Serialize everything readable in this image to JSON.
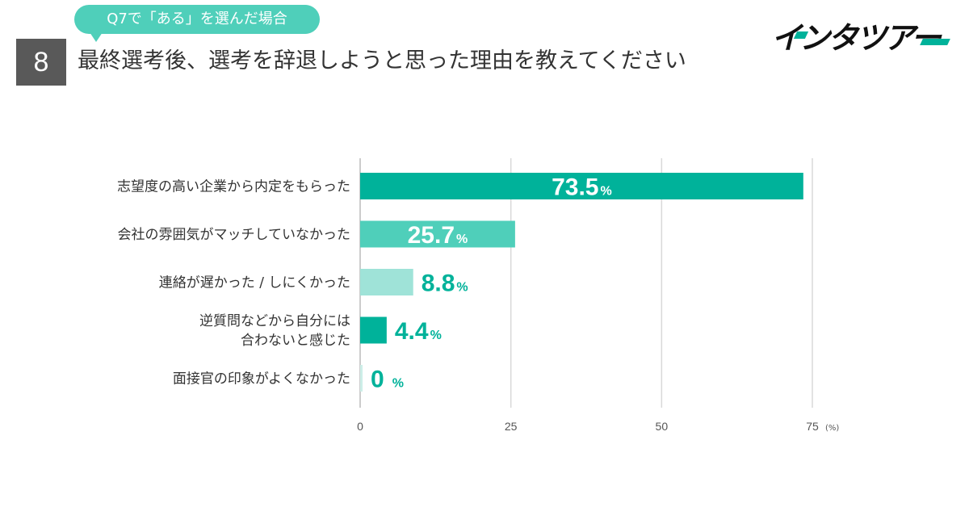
{
  "header": {
    "condition_label": "Q7で「ある」を選んだ場合",
    "question_number": "8",
    "title": "最終選考後、選考を辞退しようと思った理由を教えてください",
    "brand": "インタツアー"
  },
  "colors": {
    "accent": "#00b29a",
    "bubble": "#4fcfba",
    "number_box": "#595959"
  },
  "chart_data": {
    "type": "bar",
    "orientation": "horizontal",
    "categories": [
      "志望度の高い企業から内定をもらった",
      "会社の雰囲気がマッチしていなかった",
      "連絡が遅かった / しにくかった",
      "逆質問などから自分には\n合わないと感じた",
      "面接官の印象がよくなかった"
    ],
    "values": [
      73.5,
      25.7,
      8.8,
      4.4,
      0
    ],
    "value_labels": [
      "73.5",
      "25.7",
      "8.8",
      "4.4",
      "0"
    ],
    "value_unit": "%",
    "bar_colors": [
      "#00b29a",
      "#4fcfba",
      "#9fe3d8",
      "#00b29a",
      "#cdeee8"
    ],
    "xlim": [
      0,
      75
    ],
    "xticks": [
      "0",
      "25",
      "50",
      "75"
    ],
    "x_unit": "(%)",
    "grid": true
  }
}
